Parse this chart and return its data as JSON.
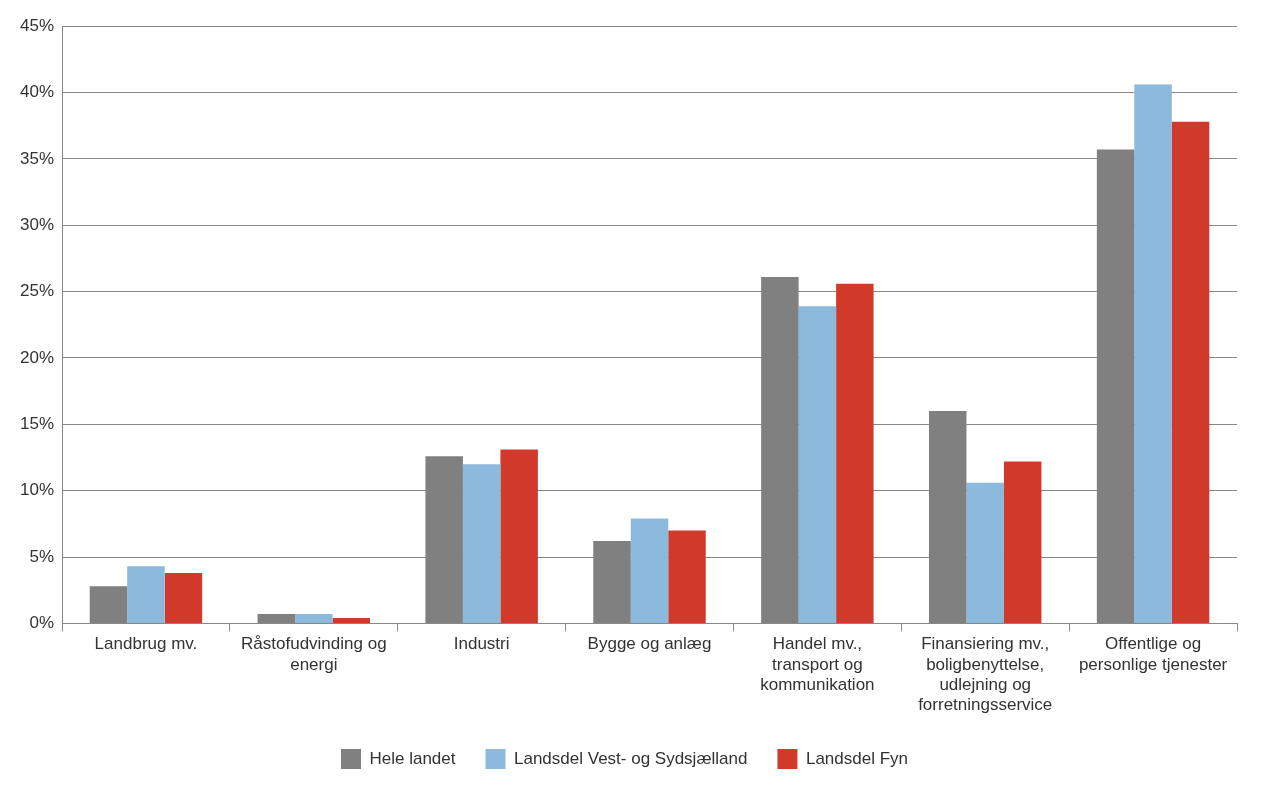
{
  "chart_data": {
    "type": "bar",
    "categories": [
      "Landbrug mv.",
      "Råstofudvinding og energi",
      "Industri",
      "Bygge og anlæg",
      "Handel mv., transport og kommunikation",
      "Finansiering mv., boligbenyttelse, udlejning og forretningsservice",
      "Offentlige og personlige tjenester"
    ],
    "series": [
      {
        "name": "Hele landet",
        "color": "#808080",
        "values": [
          2.8,
          0.7,
          12.6,
          6.2,
          26.1,
          16.0,
          35.7
        ]
      },
      {
        "name": "Landsdel Vest- og Sydsjælland",
        "color": "#8bbadd",
        "values": [
          4.3,
          0.7,
          12.0,
          7.9,
          23.9,
          10.6,
          40.6
        ]
      },
      {
        "name": "Landsdel Fyn",
        "color": "#d13a2a",
        "values": [
          3.8,
          0.4,
          13.1,
          7.0,
          25.6,
          12.2,
          37.8
        ]
      }
    ],
    "ylim": [
      0,
      45
    ],
    "yticks": [
      {
        "value": 0,
        "label": "0%"
      },
      {
        "value": 5,
        "label": "5%"
      },
      {
        "value": 10,
        "label": "10%"
      },
      {
        "value": 15,
        "label": "15%"
      },
      {
        "value": 20,
        "label": "20%"
      },
      {
        "value": 25,
        "label": "25%"
      },
      {
        "value": 30,
        "label": "30%"
      },
      {
        "value": 35,
        "label": "35%"
      },
      {
        "value": 40,
        "label": "40%"
      },
      {
        "value": 45,
        "label": "45%"
      }
    ],
    "grid": "y",
    "legend": "bottom"
  }
}
